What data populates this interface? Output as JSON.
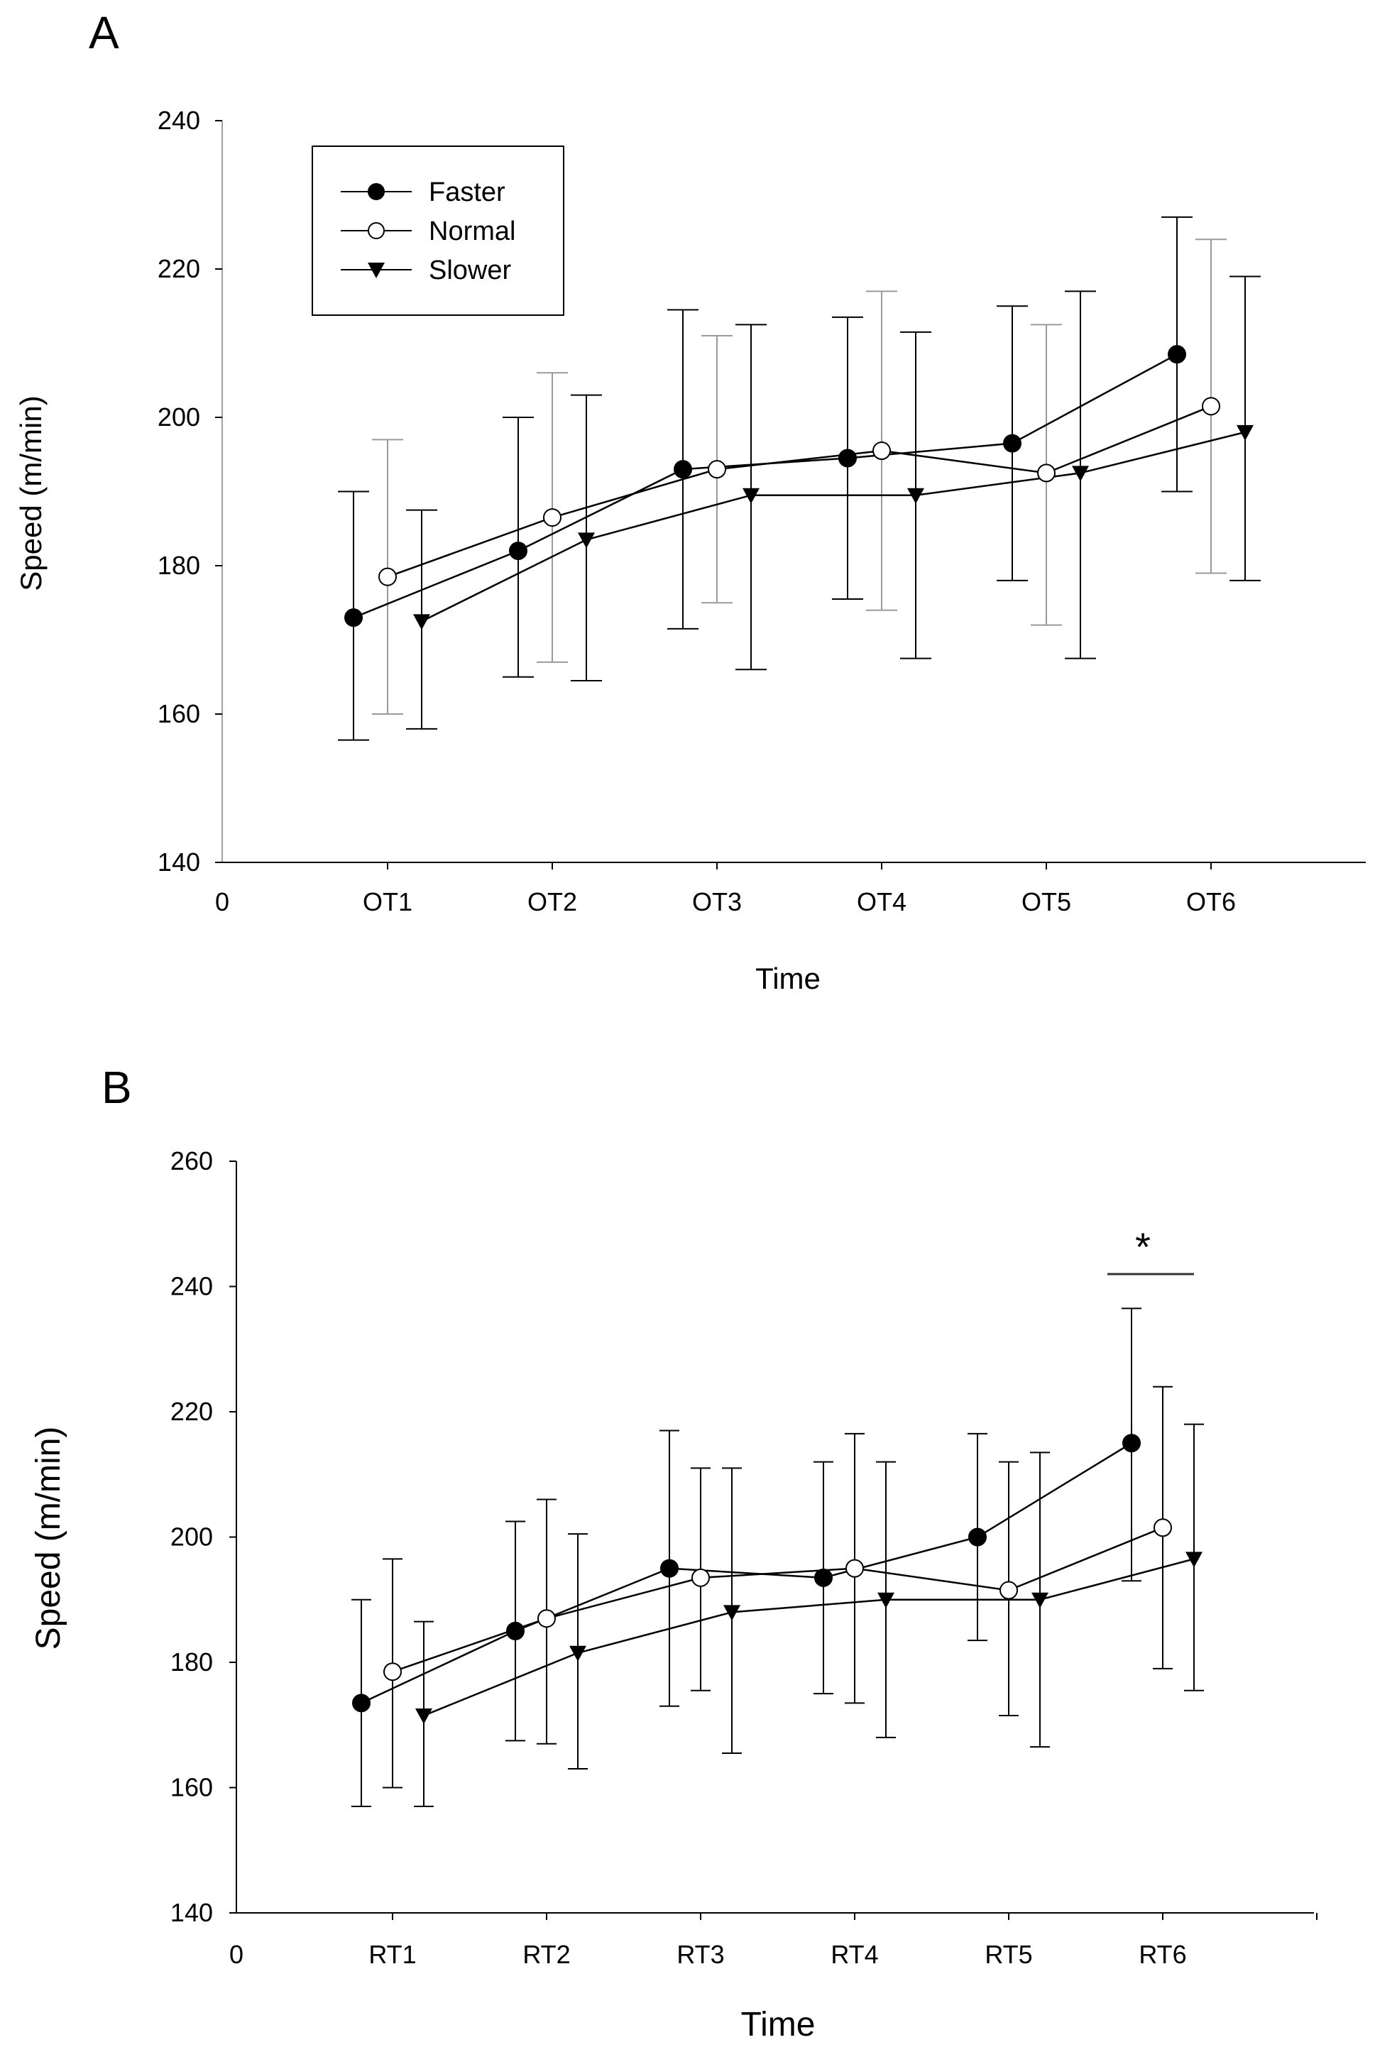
{
  "colors": {
    "background": "#ffffff",
    "axis": "#000000",
    "left_axis_panel_a": "#a0a0a0",
    "marker_open_fill": "#ffffff",
    "normal_errorbar_panel_a": "#9a9a9a"
  },
  "chart_data": [
    {
      "panel": "A",
      "type": "line",
      "xlabel": "Time",
      "ylabel": "Speed (m/min)",
      "ylim": [
        140,
        240
      ],
      "yticks": [
        "140",
        "160",
        "180",
        "200",
        "220",
        "240"
      ],
      "x_origin_label": "0",
      "categories": [
        "OT1",
        "OT2",
        "OT3",
        "OT4",
        "OT5",
        "OT6"
      ],
      "grid": false,
      "legend_position": "top-left",
      "error_bars": true,
      "series": [
        {
          "name": "Faster",
          "marker": "filled-circle",
          "values": [
            173,
            182,
            193,
            194.5,
            196.5,
            208.5
          ],
          "err_low": [
            156.5,
            165,
            171.5,
            175.5,
            178,
            190
          ],
          "err_high": [
            190,
            200,
            214.5,
            213.5,
            215,
            227
          ]
        },
        {
          "name": "Normal",
          "marker": "open-circle",
          "values": [
            178.5,
            186.5,
            193,
            195.5,
            192.5,
            201.5
          ],
          "err_low": [
            160,
            167,
            175,
            174,
            172,
            179
          ],
          "err_high": [
            197,
            206,
            211,
            217,
            212.5,
            224
          ]
        },
        {
          "name": "Slower",
          "marker": "filled-triangle-down",
          "values": [
            172.5,
            183.5,
            189.5,
            189.5,
            192.5,
            198
          ],
          "err_low": [
            158,
            164.5,
            166,
            167.5,
            167.5,
            178
          ],
          "err_high": [
            187.5,
            203,
            212.5,
            211.5,
            217,
            219
          ]
        }
      ]
    },
    {
      "panel": "B",
      "type": "line",
      "xlabel": "Time",
      "ylabel": "Speed (m/min)",
      "ylim": [
        140,
        260
      ],
      "yticks": [
        "140",
        "160",
        "180",
        "200",
        "220",
        "240",
        "260"
      ],
      "x_origin_label": "0",
      "categories": [
        "RT1",
        "RT2",
        "RT3",
        "RT4",
        "RT5",
        "RT6"
      ],
      "grid": false,
      "error_bars": true,
      "annotation": {
        "text": "*",
        "category": "RT6"
      },
      "series": [
        {
          "name": "Faster",
          "marker": "filled-circle",
          "values": [
            173.5,
            185,
            195,
            193.5,
            200,
            215
          ],
          "err_low": [
            157,
            167.5,
            173,
            175,
            183.5,
            193
          ],
          "err_high": [
            190,
            202.5,
            217,
            212,
            216.5,
            236.5
          ]
        },
        {
          "name": "Normal",
          "marker": "open-circle",
          "values": [
            178.5,
            187,
            193.5,
            195,
            191.5,
            201.5
          ],
          "err_low": [
            160,
            167,
            175.5,
            173.5,
            171.5,
            179
          ],
          "err_high": [
            196.5,
            206,
            211,
            216.5,
            212,
            224
          ]
        },
        {
          "name": "Slower",
          "marker": "filled-triangle-down",
          "values": [
            171.5,
            181.5,
            188,
            190,
            190,
            196.5
          ],
          "err_low": [
            157,
            163,
            165.5,
            168,
            166.5,
            175.5
          ],
          "err_high": [
            186.5,
            200.5,
            211,
            212,
            213.5,
            218
          ]
        }
      ]
    }
  ]
}
